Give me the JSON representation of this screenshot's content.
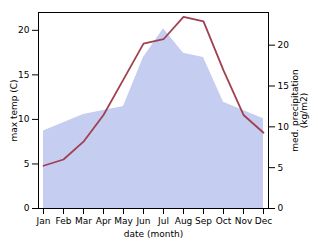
{
  "chart_data": {
    "type": "line",
    "categories": [
      "Jan",
      "Feb",
      "Mar",
      "Apr",
      "May",
      "Jun",
      "Jul",
      "Aug",
      "Sep",
      "Oct",
      "Nov",
      "Dec"
    ],
    "series": [
      {
        "type": "area",
        "axis": "y2",
        "color": "#c5cdf0",
        "values": [
          9.5,
          10.5,
          11.5,
          12.0,
          12.5,
          18.5,
          22.0,
          19.0,
          18.5,
          13.0,
          12.0,
          11.0
        ]
      },
      {
        "type": "line",
        "color": "#a04050",
        "values": [
          4.8,
          5.5,
          7.5,
          10.5,
          14.5,
          18.5,
          19.0,
          21.5,
          21.0,
          15.5,
          10.5,
          8.5
        ]
      }
    ],
    "xlabel": "date (month)",
    "ylabel": "max temp (C)",
    "y2label": "med. precipitation\n(kg/m2)",
    "ylim": [
      0,
      22
    ],
    "yticks": [
      0,
      5,
      10,
      15,
      20
    ],
    "y2lim": [
      0,
      24
    ],
    "y2ticks": [
      0,
      5,
      10,
      15,
      20
    ],
    "grid": false
  }
}
